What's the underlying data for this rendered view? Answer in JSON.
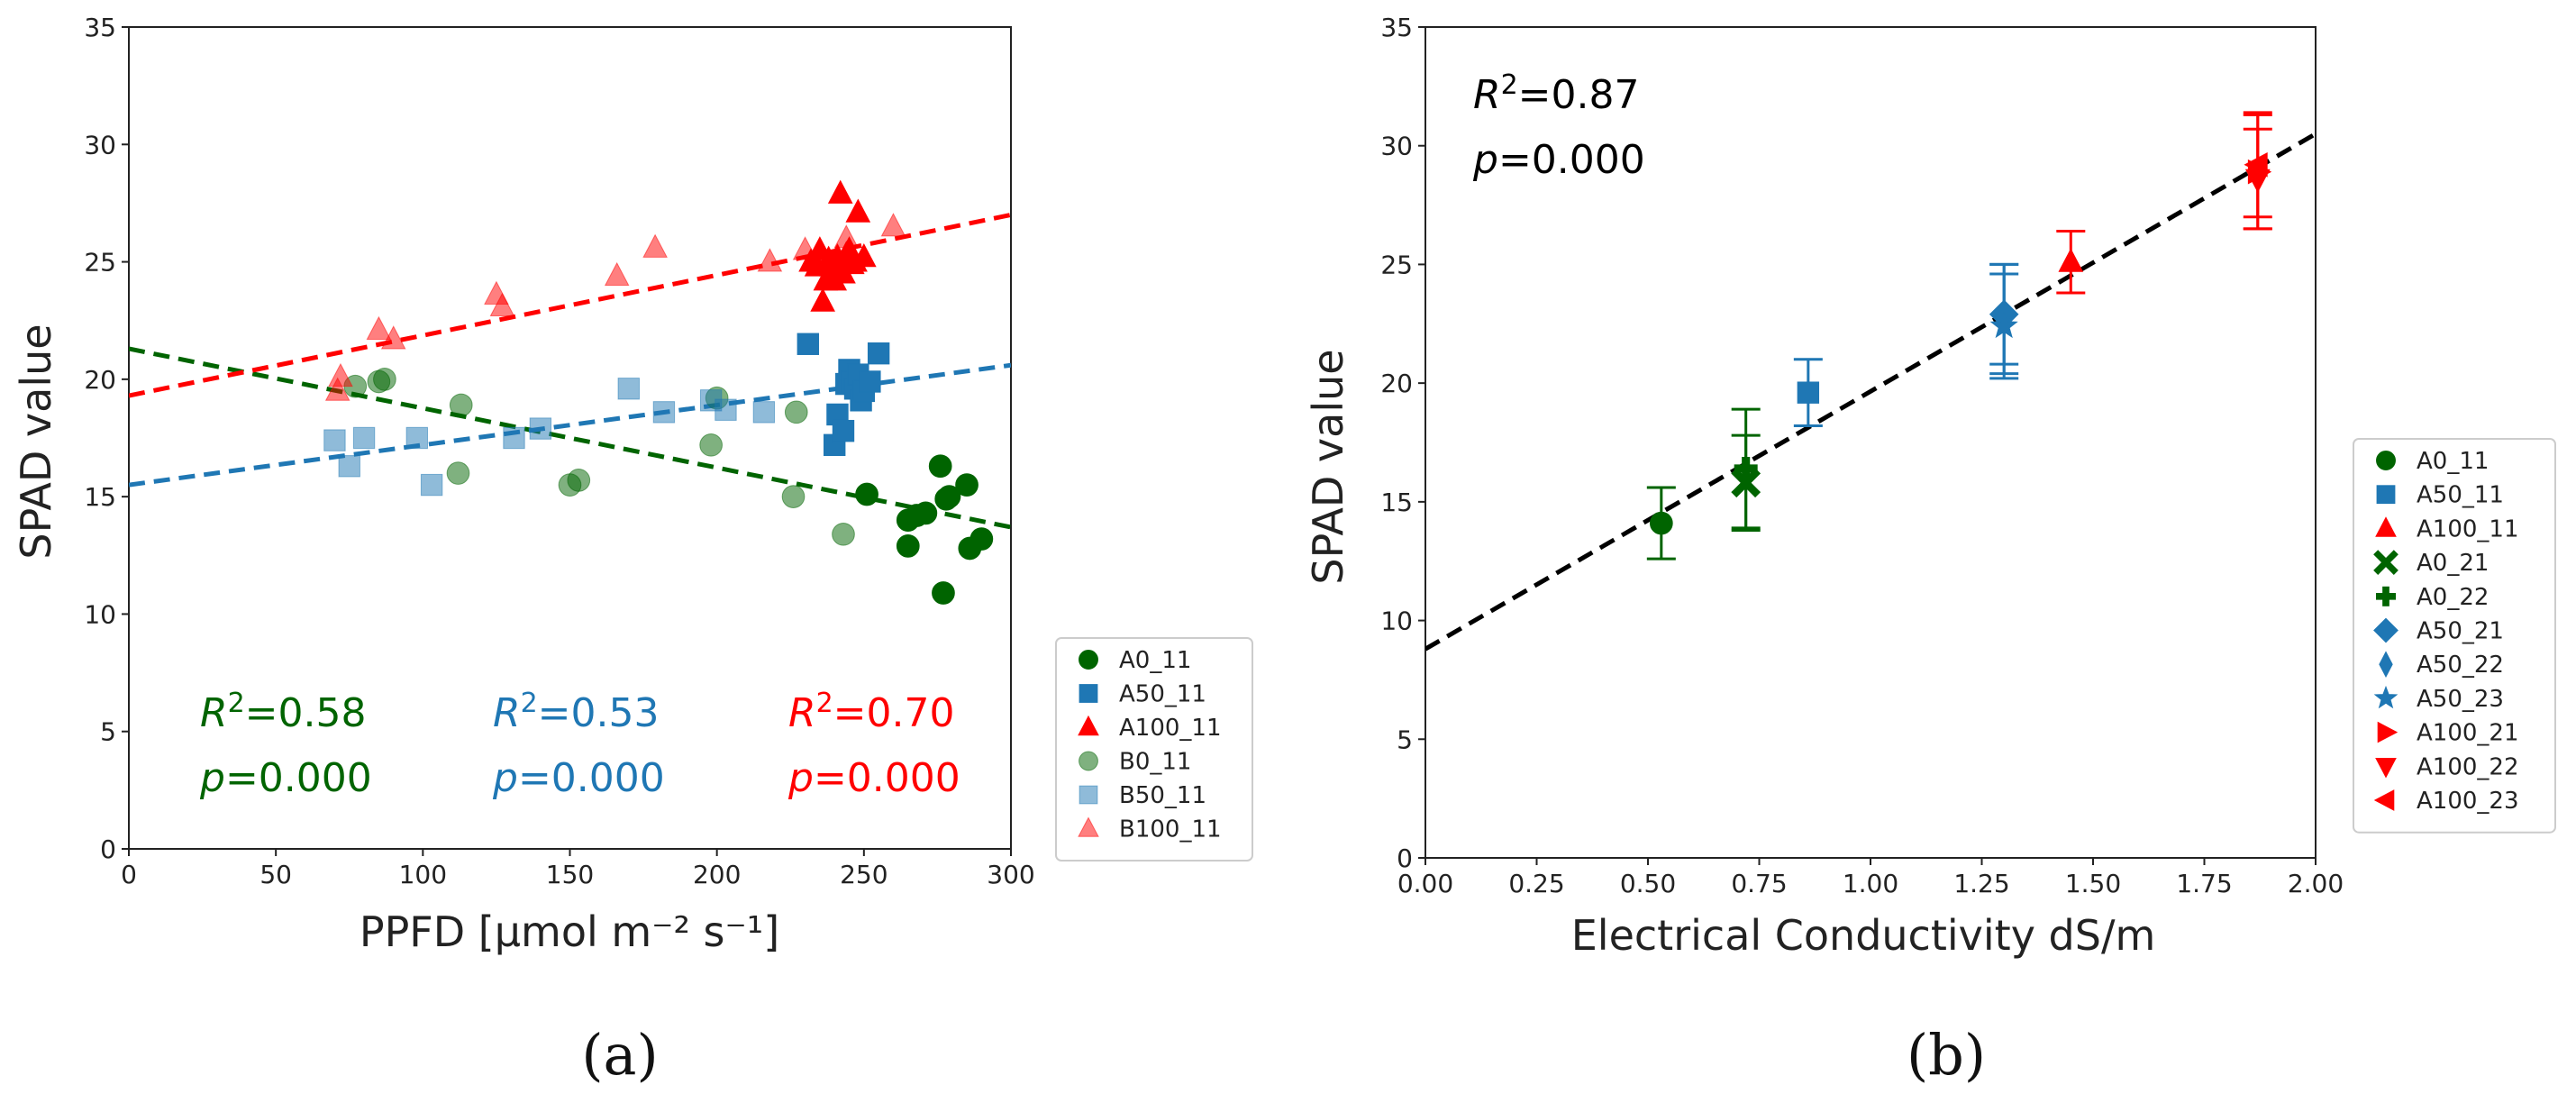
{
  "colors": {
    "green": "#006400",
    "blue": "#1f77b4",
    "red": "#ff0000",
    "black": "#000000"
  },
  "chart_data": [
    {
      "type": "scatter",
      "panel_label": "(a)",
      "xlabel": "PPFD [μmol m⁻² s⁻¹]",
      "ylabel": "SPAD value",
      "xlim": [
        0,
        300
      ],
      "ylim": [
        0,
        35
      ],
      "xticks": [
        "0",
        "50",
        "100",
        "150",
        "200",
        "250",
        "300"
      ],
      "yticks": [
        "0",
        "5",
        "10",
        "15",
        "20",
        "25",
        "30",
        "35"
      ],
      "series": [
        {
          "name": "A0_11",
          "marker": "circle",
          "color": "#006400",
          "alpha": 1,
          "x": [
            251,
            265,
            265,
            268,
            271,
            276,
            277,
            278,
            279,
            285,
            286,
            290
          ],
          "y": [
            15.1,
            12.9,
            14,
            14.2,
            14.3,
            16.3,
            10.9,
            14.9,
            15,
            15.5,
            12.8,
            13.2
          ]
        },
        {
          "name": "A50_11",
          "marker": "square",
          "color": "#1f77b4",
          "alpha": 1,
          "x": [
            231,
            240,
            241,
            243,
            244,
            245,
            246,
            247,
            248,
            249,
            250,
            252,
            255
          ],
          "y": [
            21.5,
            17.2,
            18.5,
            17.8,
            19.8,
            20.4,
            19.9,
            19.6,
            20.2,
            19.1,
            19.5,
            19.9,
            21.1
          ]
        },
        {
          "name": "A100_11",
          "marker": "triangle",
          "color": "#ff0000",
          "alpha": 1,
          "x": [
            232,
            234,
            235,
            236,
            237,
            238,
            239,
            240,
            241,
            242,
            243,
            244,
            245,
            246,
            247,
            248,
            250
          ],
          "y": [
            25.0,
            24.8,
            25.5,
            23.3,
            24.2,
            25.1,
            24.8,
            24.2,
            25.2,
            27.9,
            24.5,
            25.3,
            25.5,
            24.9,
            25.0,
            27.1,
            25.2
          ]
        },
        {
          "name": "B0_11",
          "marker": "circle",
          "color": "#006400",
          "alpha": 0.5,
          "x": [
            77,
            85,
            87,
            112,
            113,
            150,
            153,
            198,
            200,
            226,
            227,
            243
          ],
          "y": [
            19.7,
            19.9,
            20,
            16,
            18.9,
            15.5,
            15.7,
            17.2,
            19.2,
            15,
            18.6,
            13.4
          ]
        },
        {
          "name": "B50_11",
          "marker": "square",
          "color": "#1f77b4",
          "alpha": 0.5,
          "x": [
            70,
            75,
            80,
            98,
            103,
            131,
            140,
            170,
            182,
            198,
            203,
            216
          ],
          "y": [
            17.4,
            16.3,
            17.5,
            17.5,
            15.5,
            17.5,
            17.9,
            19.6,
            18.6,
            19.1,
            18.7,
            18.6
          ]
        },
        {
          "name": "B100_11",
          "marker": "triangle",
          "color": "#ff0000",
          "alpha": 0.5,
          "x": [
            71,
            72,
            85,
            90,
            125,
            127,
            166,
            179,
            218,
            230,
            244,
            260
          ],
          "y": [
            19.5,
            20.1,
            22.1,
            21.7,
            23.6,
            23.1,
            24.4,
            25.6,
            25.0,
            25.5,
            26.0,
            26.5
          ]
        }
      ],
      "fit_lines": [
        {
          "color": "#006400",
          "x": [
            0,
            300
          ],
          "y": [
            21.3,
            13.7
          ]
        },
        {
          "color": "#1f77b4",
          "x": [
            0,
            300
          ],
          "y": [
            15.5,
            20.6
          ]
        },
        {
          "color": "#ff0000",
          "x": [
            0,
            300
          ],
          "y": [
            19.3,
            27.0
          ]
        }
      ],
      "annotations": [
        {
          "color": "#006400",
          "r2": "0.58",
          "p": "0.000"
        },
        {
          "color": "#1f77b4",
          "r2": "0.53",
          "p": "0.000"
        },
        {
          "color": "#ff0000",
          "r2": "0.70",
          "p": "0.000"
        }
      ],
      "legend_position": "outside-right-bottom",
      "legend": [
        {
          "label": "A0_11",
          "marker": "circle",
          "color": "#006400",
          "alpha": 1
        },
        {
          "label": "A50_11",
          "marker": "square",
          "color": "#1f77b4",
          "alpha": 1
        },
        {
          "label": "A100_11",
          "marker": "triangle",
          "color": "#ff0000",
          "alpha": 1
        },
        {
          "label": "B0_11",
          "marker": "circle",
          "color": "#006400",
          "alpha": 0.5
        },
        {
          "label": "B50_11",
          "marker": "square",
          "color": "#1f77b4",
          "alpha": 0.5
        },
        {
          "label": "B100_11",
          "marker": "triangle",
          "color": "#ff0000",
          "alpha": 0.5
        }
      ]
    },
    {
      "type": "scatter",
      "panel_label": "(b)",
      "xlabel": "Electrical Conductivity dS/m",
      "ylabel": "SPAD value",
      "xlim": [
        0,
        2
      ],
      "ylim": [
        0,
        35
      ],
      "xticks": [
        "0.00",
        "0.25",
        "0.50",
        "0.75",
        "1.00",
        "1.25",
        "1.50",
        "1.75",
        "2.00"
      ],
      "yticks": [
        "0",
        "5",
        "10",
        "15",
        "20",
        "25",
        "30",
        "35"
      ],
      "points": [
        {
          "name": "A0_11",
          "marker": "circle",
          "color": "#006400",
          "x": 0.53,
          "y": 14.1,
          "err": 1.5
        },
        {
          "name": "A0_21",
          "marker": "x",
          "color": "#006400",
          "x": 0.72,
          "y": 15.8,
          "err": 2.0
        },
        {
          "name": "A0_22",
          "marker": "plus",
          "color": "#006400",
          "x": 0.72,
          "y": 16.4,
          "err": 2.5
        },
        {
          "name": "A50_11",
          "marker": "square",
          "color": "#1f77b4",
          "x": 0.86,
          "y": 19.6,
          "err": 1.4
        },
        {
          "name": "A50_21",
          "marker": "diamond",
          "color": "#1f77b4",
          "x": 1.3,
          "y": 22.9,
          "err": 2.1
        },
        {
          "name": "A50_22",
          "marker": "thin_diamond",
          "color": "#1f77b4",
          "x": 1.3,
          "y": 22.7,
          "err": 2.3
        },
        {
          "name": "A50_23",
          "marker": "star",
          "color": "#1f77b4",
          "x": 1.3,
          "y": 22.4,
          "err": 2.2
        },
        {
          "name": "A100_11",
          "marker": "triangle",
          "color": "#ff0000",
          "x": 1.45,
          "y": 25.1,
          "err": 1.3
        },
        {
          "name": "A100_21",
          "marker": "tri-right",
          "color": "#ff0000",
          "x": 1.87,
          "y": 28.9,
          "err": 2.4
        },
        {
          "name": "A100_22",
          "marker": "tri-down",
          "color": "#ff0000",
          "x": 1.87,
          "y": 28.6,
          "err": 2.1
        },
        {
          "name": "A100_23",
          "marker": "tri-left",
          "color": "#ff0000",
          "x": 1.87,
          "y": 29.2,
          "err": 2.2
        }
      ],
      "fit_lines": [
        {
          "color": "#000000",
          "x": [
            0,
            2
          ],
          "y": [
            8.8,
            30.5
          ]
        }
      ],
      "annotations": [
        {
          "color": "#000000",
          "r2": "0.87",
          "p": "0.000"
        }
      ],
      "legend_position": "outside-right",
      "legend": [
        {
          "label": "A0_11",
          "marker": "circle",
          "color": "#006400"
        },
        {
          "label": "A50_11",
          "marker": "square",
          "color": "#1f77b4"
        },
        {
          "label": "A100_11",
          "marker": "triangle",
          "color": "#ff0000"
        },
        {
          "label": "A0_21",
          "marker": "x",
          "color": "#006400"
        },
        {
          "label": "A0_22",
          "marker": "plus",
          "color": "#006400"
        },
        {
          "label": "A50_21",
          "marker": "diamond",
          "color": "#1f77b4"
        },
        {
          "label": "A50_22",
          "marker": "thin_diamond",
          "color": "#1f77b4"
        },
        {
          "label": "A50_23",
          "marker": "star",
          "color": "#1f77b4"
        },
        {
          "label": "A100_21",
          "marker": "tri-right",
          "color": "#ff0000"
        },
        {
          "label": "A100_22",
          "marker": "tri-down",
          "color": "#ff0000"
        },
        {
          "label": "A100_23",
          "marker": "tri-left",
          "color": "#ff0000"
        }
      ]
    }
  ]
}
